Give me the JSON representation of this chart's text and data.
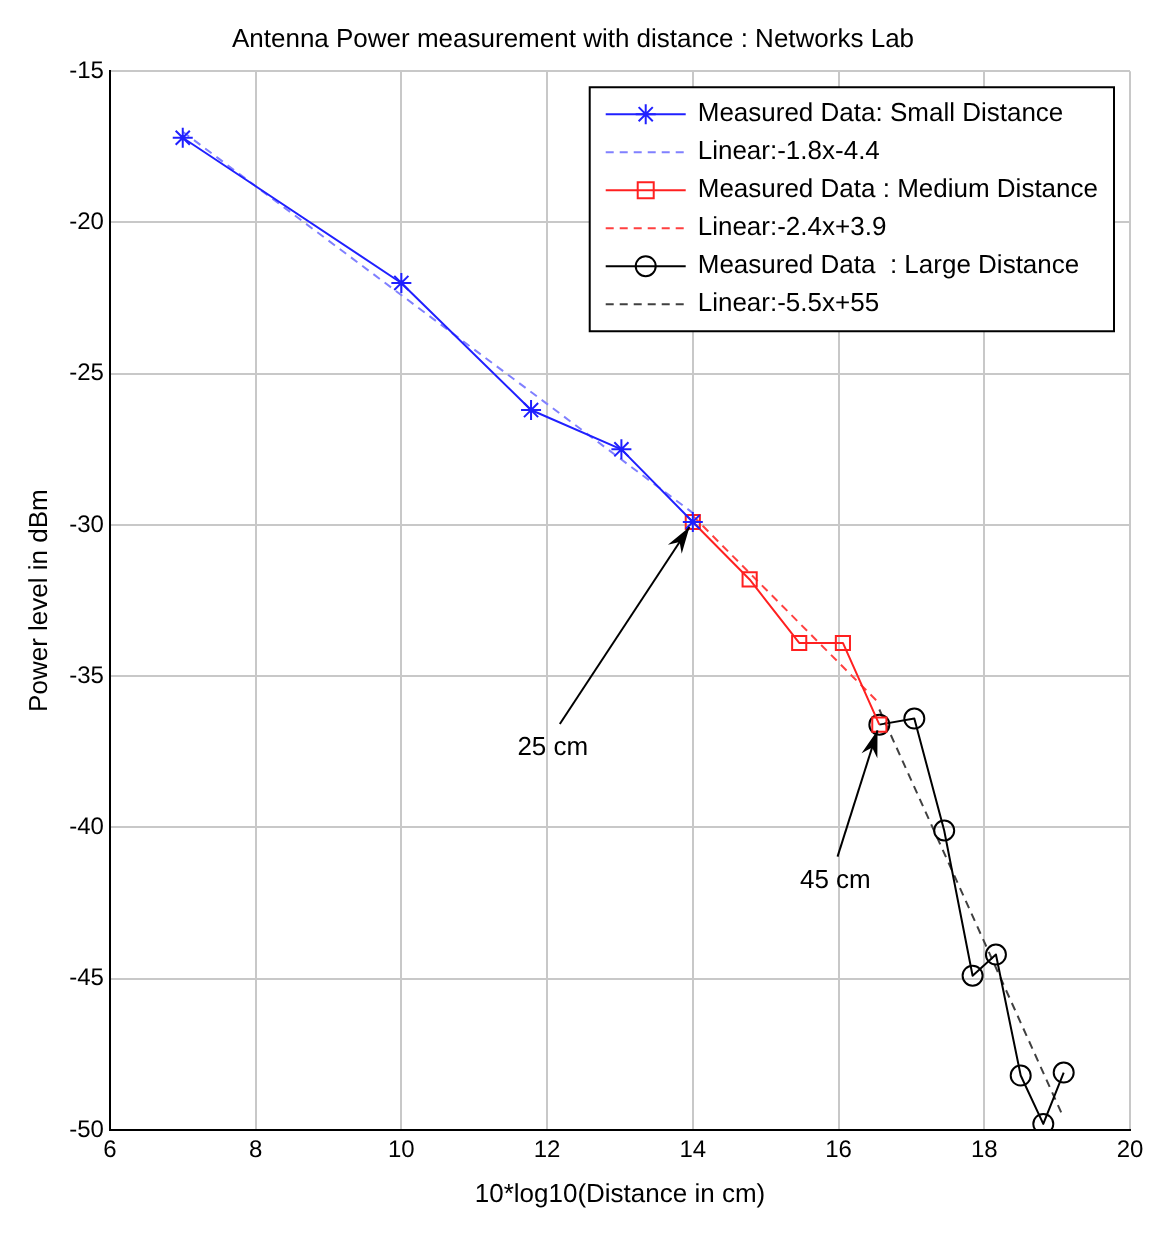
{
  "chart_data": {
    "type": "line",
    "title": "Antenna Power measurement with distance : Networks Lab",
    "xlabel": "10*log10(Distance in cm)",
    "ylabel": "Power level in dBm",
    "xlim": [
      6,
      20
    ],
    "xticks": [
      6,
      8,
      10,
      12,
      14,
      16,
      18,
      20
    ],
    "ylim": [
      -50,
      -15
    ],
    "yticks": [
      -50,
      -45,
      -40,
      -35,
      -30,
      -25,
      -20,
      -15
    ],
    "grid": true,
    "legend": "top right",
    "series": [
      {
        "name": "Measured Data: Small Distance",
        "color": "#2020ff",
        "marker": "cross",
        "line_style": "solid",
        "x": [
          7.0,
          10.0,
          11.78,
          13.02,
          14.0
        ],
        "values": [
          -17.2,
          -22.0,
          -26.2,
          -27.5,
          -29.9
        ]
      },
      {
        "name": "Linear:-1.8x-4.4",
        "color": "#8080ff",
        "marker": "none",
        "line_style": "dashed",
        "x": [
          7.0,
          14.0
        ],
        "values": [
          -17.0,
          -29.6
        ]
      },
      {
        "name": "Measured Data : Medium Distance",
        "color": "#ff2020",
        "marker": "square",
        "line_style": "solid",
        "x": [
          14.0,
          14.78,
          15.46,
          16.06,
          16.56
        ],
        "values": [
          -29.9,
          -31.8,
          -33.9,
          -33.9,
          -36.6
        ]
      },
      {
        "name": "Linear:-2.4x+3.9",
        "color": "#ff4040",
        "marker": "none",
        "line_style": "dashed",
        "x": [
          14.0,
          16.56
        ],
        "values": [
          -29.7,
          -35.9
        ]
      },
      {
        "name": "Measured Data  : Large Distance",
        "color": "#000000",
        "marker": "circle",
        "line_style": "solid",
        "x": [
          16.56,
          17.04,
          17.45,
          17.84,
          18.16,
          18.5,
          18.81,
          19.09
        ],
        "values": [
          -36.6,
          -36.4,
          -40.1,
          -44.9,
          -44.2,
          -48.2,
          -49.8,
          -48.1
        ]
      },
      {
        "name": "Linear:-5.5x+55",
        "color": "#404040",
        "marker": "none",
        "line_style": "dashed",
        "x": [
          16.56,
          19.09
        ],
        "values": [
          -36.1,
          -49.6
        ]
      }
    ],
    "annotations": [
      {
        "text": "25 cm",
        "x": 14.0,
        "y": -29.9
      },
      {
        "text": "45 cm",
        "x": 16.56,
        "y": -36.6
      }
    ]
  }
}
